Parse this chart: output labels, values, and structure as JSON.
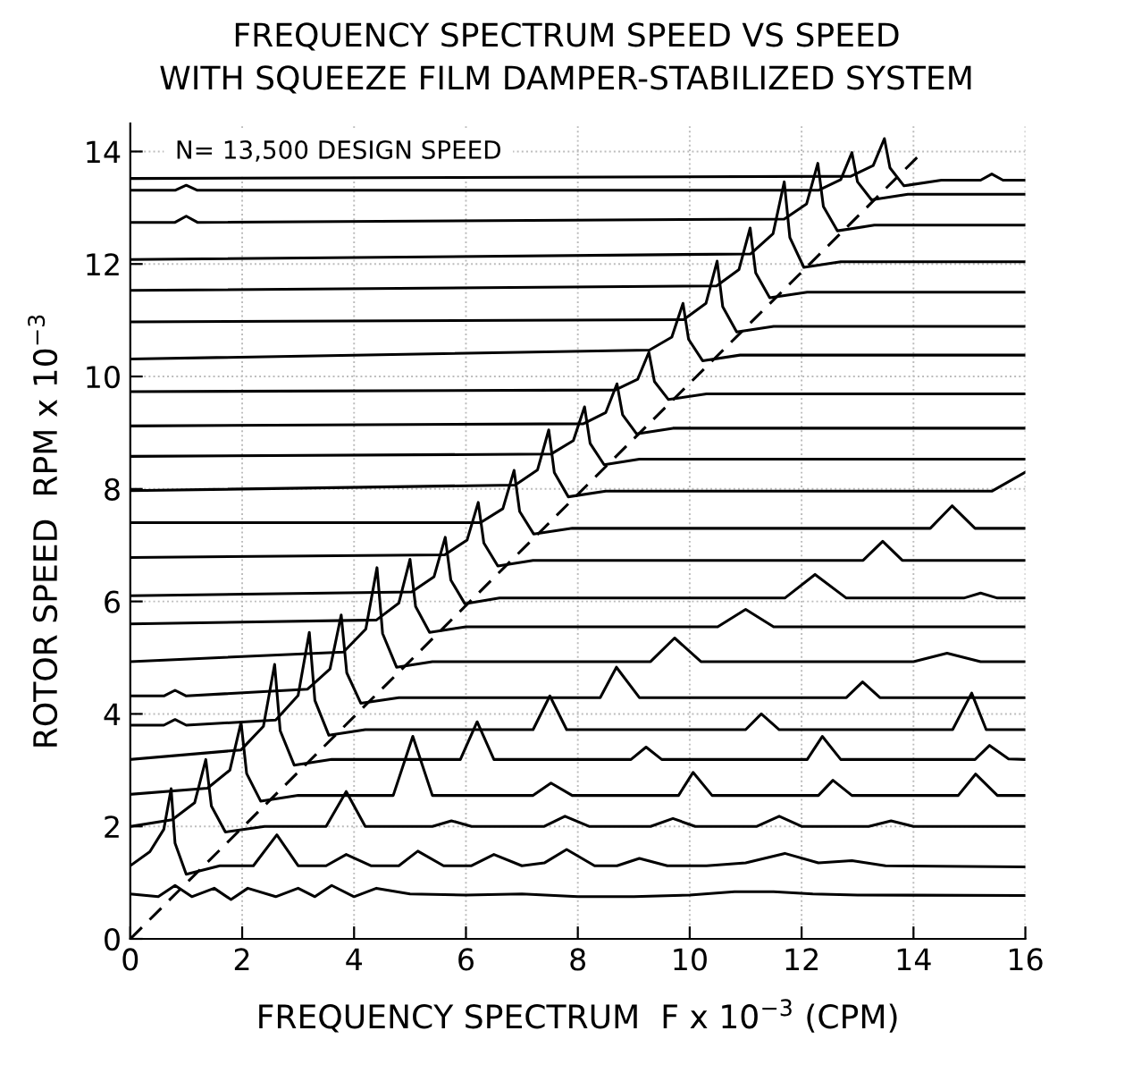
{
  "chart_data": {
    "type": "line",
    "title": "FREQUENCY SPECTRUM SPEED VS SPEED",
    "subtitle": "WITH SQUEEZE FILM DAMPER-STABILIZED SYSTEM",
    "xlabel": "FREQUENCY SPECTRUM  F x 10$^{−3}$ (CPM)",
    "ylabel": "ROTOR SPEED  RPM x 10$^{−3}$",
    "annotations": [
      "N= 13,500 DESIGN SPEED"
    ],
    "xlim": [
      0,
      16
    ],
    "xticks": [
      0,
      2,
      4,
      6,
      8,
      10,
      12,
      14,
      16
    ],
    "ylim": [
      0,
      14.5
    ],
    "yticks": [
      0,
      2,
      4,
      6,
      8,
      10,
      12,
      14
    ],
    "grid": true,
    "marker": "none",
    "line_style": "solid",
    "color": "#000000",
    "series": [
      {
        "x": [
          0,
          0.5,
          0.8,
          1.1,
          1.5,
          1.8,
          2.1,
          2.6,
          3.0,
          3.3,
          3.6,
          4.0,
          4.4,
          5,
          6,
          7,
          8,
          9,
          10,
          10.8,
          11.5,
          12.2,
          13,
          16
        ],
        "values": [
          0.8,
          0.75,
          0.95,
          0.75,
          0.9,
          0.7,
          0.9,
          0.75,
          0.9,
          0.75,
          0.95,
          0.75,
          0.9,
          0.8,
          0.78,
          0.8,
          0.75,
          0.75,
          0.78,
          0.84,
          0.84,
          0.8,
          0.78,
          0.77
        ]
      },
      {
        "x": [
          0,
          0.35,
          0.6,
          0.73,
          0.8,
          1.0,
          1.6,
          2.2,
          2.62,
          3.0,
          3.5,
          3.86,
          4.3,
          4.8,
          5.14,
          5.6,
          6.1,
          6.5,
          7.0,
          7.4,
          7.8,
          8.3,
          8.7,
          9.1,
          9.6,
          10.3,
          11.0,
          11.7,
          12.3,
          12.9,
          13.5,
          16
        ],
        "values": [
          1.3,
          1.55,
          1.95,
          2.67,
          1.7,
          1.15,
          1.3,
          1.3,
          1.85,
          1.3,
          1.3,
          1.5,
          1.3,
          1.3,
          1.56,
          1.3,
          1.3,
          1.5,
          1.3,
          1.35,
          1.59,
          1.3,
          1.3,
          1.43,
          1.3,
          1.3,
          1.35,
          1.52,
          1.35,
          1.39,
          1.3,
          1.28
        ]
      },
      {
        "x": [
          0,
          0.75,
          1.15,
          1.35,
          1.45,
          1.7,
          2.4,
          3.5,
          3.86,
          4.2,
          5.4,
          5.74,
          6.1,
          7.4,
          7.77,
          8.2,
          9.3,
          9.7,
          10.1,
          11.2,
          11.6,
          12.0,
          13.2,
          13.6,
          14.0,
          16
        ],
        "values": [
          2.0,
          2.12,
          2.42,
          3.19,
          2.36,
          1.9,
          2.0,
          2.0,
          2.62,
          2.0,
          2.0,
          2.1,
          2.0,
          2.0,
          2.18,
          2.0,
          2.0,
          2.14,
          2.0,
          2.0,
          2.18,
          2.0,
          2.0,
          2.1,
          2.0,
          2.0
        ]
      },
      {
        "x": [
          0,
          1.38,
          1.78,
          1.98,
          2.08,
          2.33,
          3.0,
          4.7,
          5.05,
          5.4,
          7.2,
          7.52,
          7.9,
          9.8,
          10.06,
          10.4,
          12.3,
          12.56,
          12.9,
          14.8,
          15.11,
          15.5,
          16
        ],
        "values": [
          2.57,
          2.68,
          3.0,
          3.85,
          2.94,
          2.45,
          2.55,
          2.55,
          3.6,
          2.55,
          2.55,
          2.77,
          2.55,
          2.55,
          2.96,
          2.55,
          2.55,
          2.82,
          2.55,
          2.55,
          2.93,
          2.55,
          2.55
        ]
      },
      {
        "x": [
          0,
          1.98,
          2.38,
          2.58,
          2.68,
          2.93,
          3.6,
          5.9,
          6.2,
          6.5,
          8.95,
          9.22,
          9.5,
          12.1,
          12.37,
          12.7,
          15.1,
          15.36,
          15.7,
          16
        ],
        "values": [
          3.19,
          3.36,
          3.78,
          4.88,
          3.7,
          3.09,
          3.19,
          3.19,
          3.86,
          3.19,
          3.19,
          3.41,
          3.19,
          3.19,
          3.6,
          3.19,
          3.19,
          3.44,
          3.2,
          3.19
        ]
      },
      {
        "x": [
          0,
          0.6,
          0.8,
          1.0,
          2.6,
          3.0,
          3.2,
          3.3,
          3.55,
          4.2,
          7.2,
          7.5,
          7.8,
          11.0,
          11.28,
          11.6,
          14.7,
          15.04,
          15.3,
          16
        ],
        "values": [
          3.8,
          3.8,
          3.9,
          3.8,
          3.89,
          4.33,
          5.45,
          4.24,
          3.62,
          3.72,
          3.72,
          4.32,
          3.72,
          3.72,
          4.0,
          3.72,
          3.72,
          4.37,
          3.72,
          3.72
        ]
      },
      {
        "x": [
          0,
          0.6,
          0.8,
          1.0,
          3.17,
          3.57,
          3.77,
          3.87,
          4.12,
          4.8,
          8.4,
          8.69,
          9.1,
          12.8,
          13.09,
          13.4,
          16
        ],
        "values": [
          4.32,
          4.32,
          4.42,
          4.32,
          4.44,
          4.8,
          5.76,
          4.73,
          4.19,
          4.29,
          4.29,
          4.83,
          4.29,
          4.29,
          4.57,
          4.29,
          4.29
        ]
      },
      {
        "x": [
          0,
          3.81,
          4.21,
          4.41,
          4.51,
          4.76,
          5.4,
          9.3,
          9.73,
          10.2,
          14.0,
          14.6,
          15.2,
          16
        ],
        "values": [
          4.93,
          5.1,
          5.51,
          6.6,
          5.43,
          4.83,
          4.93,
          4.93,
          5.35,
          4.93,
          4.93,
          5.08,
          4.93,
          4.93
        ]
      },
      {
        "x": [
          0,
          4.4,
          4.8,
          5.0,
          5.1,
          5.35,
          6.0,
          10.5,
          11.0,
          11.5,
          16
        ],
        "values": [
          5.6,
          5.67,
          5.97,
          6.75,
          5.91,
          5.45,
          5.55,
          5.55,
          5.86,
          5.55,
          5.55
        ]
      },
      {
        "x": [
          0,
          5.03,
          5.43,
          5.63,
          5.73,
          5.98,
          6.6,
          11.7,
          12.24,
          12.8,
          14.9,
          15.2,
          15.5,
          16
        ],
        "values": [
          6.1,
          6.17,
          6.44,
          7.14,
          6.38,
          5.96,
          6.06,
          6.06,
          6.48,
          6.06,
          6.06,
          6.15,
          6.06,
          6.06
        ]
      },
      {
        "x": [
          0,
          5.62,
          6.02,
          6.22,
          6.32,
          6.57,
          7.2,
          13.1,
          13.45,
          13.8,
          16
        ],
        "values": [
          6.78,
          6.83,
          7.09,
          7.76,
          7.04,
          6.63,
          6.73,
          6.73,
          7.07,
          6.73,
          6.73
        ]
      },
      {
        "x": [
          0,
          6.26,
          6.66,
          6.86,
          6.96,
          7.21,
          7.9,
          14.3,
          14.69,
          15.1,
          16
        ],
        "values": [
          7.4,
          7.4,
          7.65,
          8.33,
          7.6,
          7.2,
          7.3,
          7.3,
          7.7,
          7.3,
          7.3
        ]
      },
      {
        "x": [
          0,
          6.88,
          7.28,
          7.48,
          7.58,
          7.83,
          8.5,
          15.4,
          16
        ],
        "values": [
          7.97,
          8.07,
          8.34,
          9.05,
          8.29,
          7.86,
          7.96,
          7.96,
          8.3
        ]
      },
      {
        "x": [
          0,
          7.52,
          7.92,
          8.12,
          8.22,
          8.47,
          9.1,
          16
        ],
        "values": [
          8.58,
          8.62,
          8.86,
          9.46,
          8.81,
          8.43,
          8.53,
          8.53
        ]
      },
      {
        "x": [
          0,
          8.1,
          8.5,
          8.7,
          8.8,
          9.05,
          9.7,
          16
        ],
        "values": [
          9.12,
          9.16,
          9.36,
          9.87,
          9.32,
          8.98,
          9.08,
          9.08
        ]
      },
      {
        "x": [
          0,
          8.67,
          9.07,
          9.27,
          9.37,
          9.62,
          10.3,
          16
        ],
        "values": [
          9.73,
          9.76,
          9.95,
          10.43,
          9.91,
          9.59,
          9.69,
          9.69
        ]
      },
      {
        "x": [
          0,
          9.28,
          9.68,
          9.88,
          9.98,
          10.23,
          10.9,
          16
        ],
        "values": [
          10.31,
          10.47,
          10.7,
          11.3,
          10.66,
          10.28,
          10.38,
          10.38
        ]
      },
      {
        "x": [
          0,
          9.89,
          10.29,
          10.49,
          10.59,
          10.84,
          11.5,
          16
        ],
        "values": [
          10.97,
          11.01,
          11.3,
          12.05,
          11.24,
          10.79,
          10.89,
          10.89
        ]
      },
      {
        "x": [
          0,
          10.48,
          10.88,
          11.08,
          11.18,
          11.43,
          12.1,
          16
        ],
        "values": [
          11.53,
          11.61,
          11.9,
          12.64,
          11.84,
          11.4,
          11.5,
          11.5
        ]
      },
      {
        "x": [
          0,
          11.09,
          11.49,
          11.69,
          11.79,
          12.04,
          12.7,
          16
        ],
        "values": [
          12.08,
          12.18,
          12.54,
          13.46,
          12.47,
          11.94,
          12.04,
          12.04
        ]
      },
      {
        "x": [
          0,
          0.8,
          1.0,
          1.2,
          11.69,
          12.09,
          12.29,
          12.39,
          12.64,
          13.3,
          16
        ],
        "values": [
          12.74,
          12.74,
          12.85,
          12.74,
          12.8,
          13.07,
          13.79,
          13.02,
          12.59,
          12.69,
          12.69
        ]
      },
      {
        "x": [
          0,
          0.8,
          1.0,
          1.2,
          12.3,
          12.7,
          12.9,
          13.0,
          13.25,
          13.9,
          16
        ],
        "values": [
          13.31,
          13.31,
          13.4,
          13.31,
          13.31,
          13.5,
          13.98,
          13.46,
          13.14,
          13.24,
          13.24
        ]
      },
      {
        "x": [
          0,
          12.88,
          13.28,
          13.48,
          13.58,
          13.83,
          14.5,
          15.2,
          15.4,
          15.6,
          16
        ],
        "values": [
          13.52,
          13.56,
          13.75,
          14.23,
          13.71,
          13.39,
          13.49,
          13.49,
          13.6,
          13.49,
          13.49
        ]
      },
      {
        "x": [
          0,
          14.15
        ],
        "values": [
          0,
          13.98
        ],
        "line_style": "dashed"
      }
    ]
  }
}
